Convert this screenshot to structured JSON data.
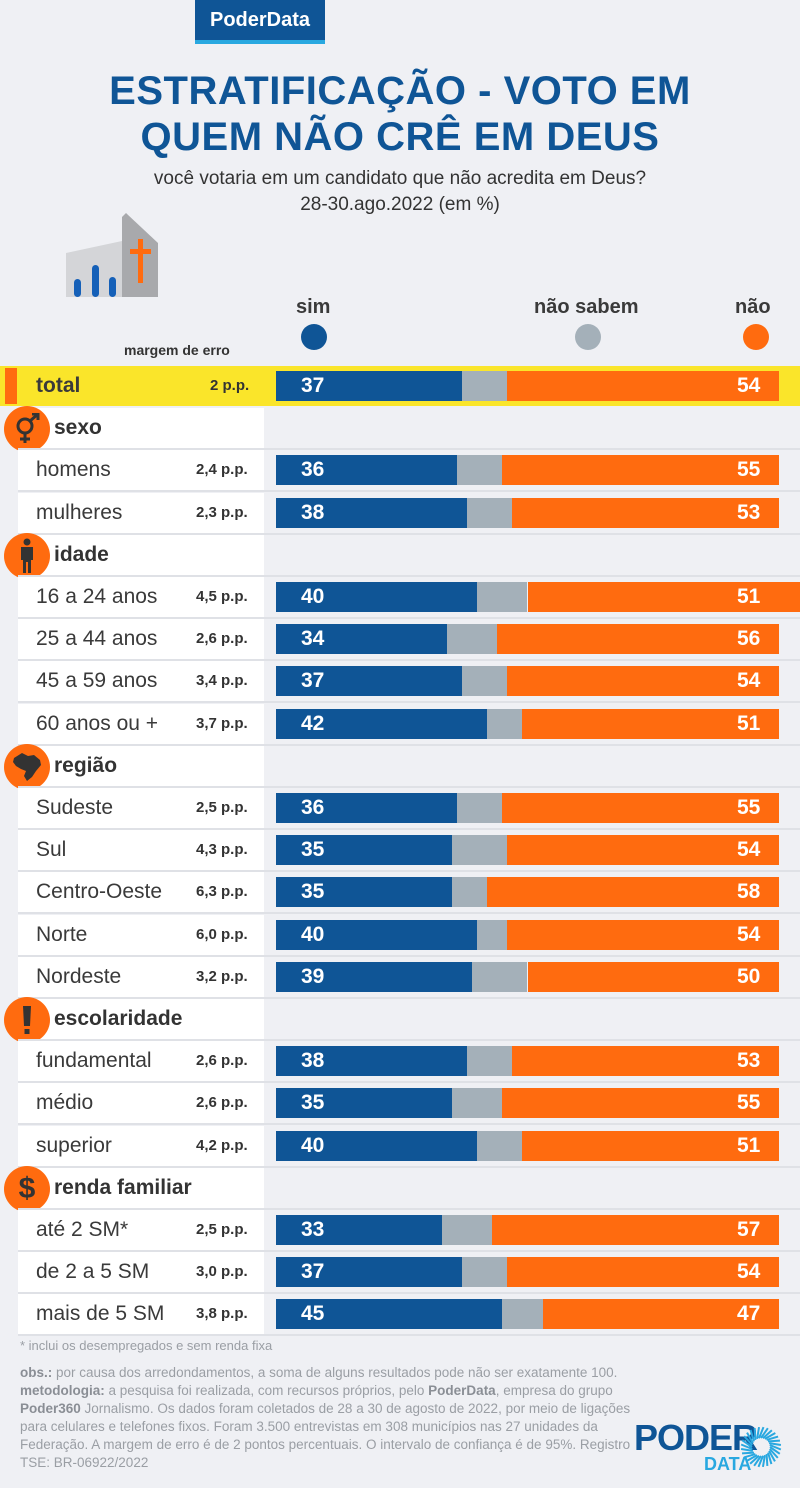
{
  "header": {
    "brand": "PoderData",
    "title_line1": "ESTRATIFICAÇÃO - VOTO EM",
    "title_line2": "QUEM NÃO CRÊ EM DEUS",
    "question": "você votaria em um candidato que não acredita em Deus?",
    "date": "28-30.ago.2022 (em %)"
  },
  "legend": {
    "margin_label": "margem de erro",
    "items": [
      {
        "key": "sim",
        "label": "sim",
        "color": "#0f5596"
      },
      {
        "key": "nao_sabem",
        "label": "não sabem",
        "color": "#a4b0b9"
      },
      {
        "key": "nao",
        "label": "não",
        "color": "#ff6b0f"
      }
    ]
  },
  "chart_data": {
    "type": "bar",
    "stacked": true,
    "orientation": "horizontal",
    "title": "ESTRATIFICAÇÃO - VOTO EM QUEM NÃO CRÊ EM DEUS",
    "subtitle": "você votaria em um candidato que não acredita em Deus? 28-30.ago.2022 (em %)",
    "unit": "%",
    "series_names": [
      "sim",
      "não sabem",
      "não"
    ],
    "total": {
      "label": "total",
      "moe": "2 p.p.",
      "sim": 37,
      "nao_sabem": 9,
      "nao": 54
    },
    "sections": [
      {
        "name": "sexo",
        "icon": "gender-icon",
        "rows": [
          {
            "label": "homens",
            "moe": "2,4 p.p.",
            "sim": 36,
            "nao_sabem": 9,
            "nao": 55
          },
          {
            "label": "mulheres",
            "moe": "2,3 p.p.",
            "sim": 38,
            "nao_sabem": 9,
            "nao": 53
          }
        ]
      },
      {
        "name": "idade",
        "icon": "person-icon",
        "rows": [
          {
            "label": "16 a 24 anos",
            "moe": "4,5 p.p.",
            "sim": 40,
            "nao_sabem": 10,
            "nao": 51
          },
          {
            "label": "25 a 44 anos",
            "moe": "2,6 p.p.",
            "sim": 34,
            "nao_sabem": 10,
            "nao": 56
          },
          {
            "label": "45 a 59 anos",
            "moe": "3,4 p.p.",
            "sim": 37,
            "nao_sabem": 9,
            "nao": 54
          },
          {
            "label": "60 anos ou +",
            "moe": "3,7 p.p.",
            "sim": 42,
            "nao_sabem": 7,
            "nao": 51
          }
        ]
      },
      {
        "name": "região",
        "icon": "brazil-map-icon",
        "rows": [
          {
            "label": "Sudeste",
            "moe": "2,5 p.p.",
            "sim": 36,
            "nao_sabem": 9,
            "nao": 55
          },
          {
            "label": "Sul",
            "moe": "4,3 p.p.",
            "sim": 35,
            "nao_sabem": 11,
            "nao": 54
          },
          {
            "label": "Centro-Oeste",
            "moe": "6,3 p.p.",
            "sim": 35,
            "nao_sabem": 7,
            "nao": 58
          },
          {
            "label": "Norte",
            "moe": "6,0 p.p.",
            "sim": 40,
            "nao_sabem": 6,
            "nao": 54
          },
          {
            "label": "Nordeste",
            "moe": "3,2 p.p.",
            "sim": 39,
            "nao_sabem": 11,
            "nao": 50
          }
        ]
      },
      {
        "name": "escolaridade",
        "icon": "exclamation-icon",
        "rows": [
          {
            "label": "fundamental",
            "moe": "2,6 p.p.",
            "sim": 38,
            "nao_sabem": 9,
            "nao": 53
          },
          {
            "label": "médio",
            "moe": "2,6 p.p.",
            "sim": 35,
            "nao_sabem": 10,
            "nao": 55
          },
          {
            "label": "superior",
            "moe": "4,2 p.p.",
            "sim": 40,
            "nao_sabem": 9,
            "nao": 51
          }
        ]
      },
      {
        "name": "renda familiar",
        "icon": "dollar-icon",
        "rows": [
          {
            "label": "até 2 SM*",
            "moe": "2,5 p.p.",
            "sim": 33,
            "nao_sabem": 10,
            "nao": 57
          },
          {
            "label": "de 2 a 5 SM",
            "moe": "3,0 p.p.",
            "sim": 37,
            "nao_sabem": 9,
            "nao": 54
          },
          {
            "label": "mais de 5 SM",
            "moe": "3,8 p.p.",
            "sim": 45,
            "nao_sabem": 8,
            "nao": 47
          }
        ]
      }
    ]
  },
  "footer": {
    "footnote": "* inclui os desempregados e sem renda fixa",
    "obs_label": "obs.:",
    "obs_text": " por causa dos arredondamentos, a soma de alguns resultados pode não ser exatamente 100.",
    "method_label": "metodologia:",
    "method_text1": " a pesquisa foi realizada, com recursos próprios, pelo ",
    "method_brand1": "PoderData",
    "method_text2": ", empresa do grupo ",
    "method_brand2": "Poder360",
    "method_text3": " Jornalismo. Os dados foram coletados de 28 a 30 de agosto de 2022, por meio de ligações para celulares e telefones fixos. Foram 3.500 entrevistas em 308 municípios nas 27 unidades da Federação. A margem de erro é de 2 pontos percentuais. O intervalo de confiança é de 95%. Registro TSE: BR-06922/2022",
    "logo_top": "PODER",
    "logo_bottom": "DATA"
  }
}
